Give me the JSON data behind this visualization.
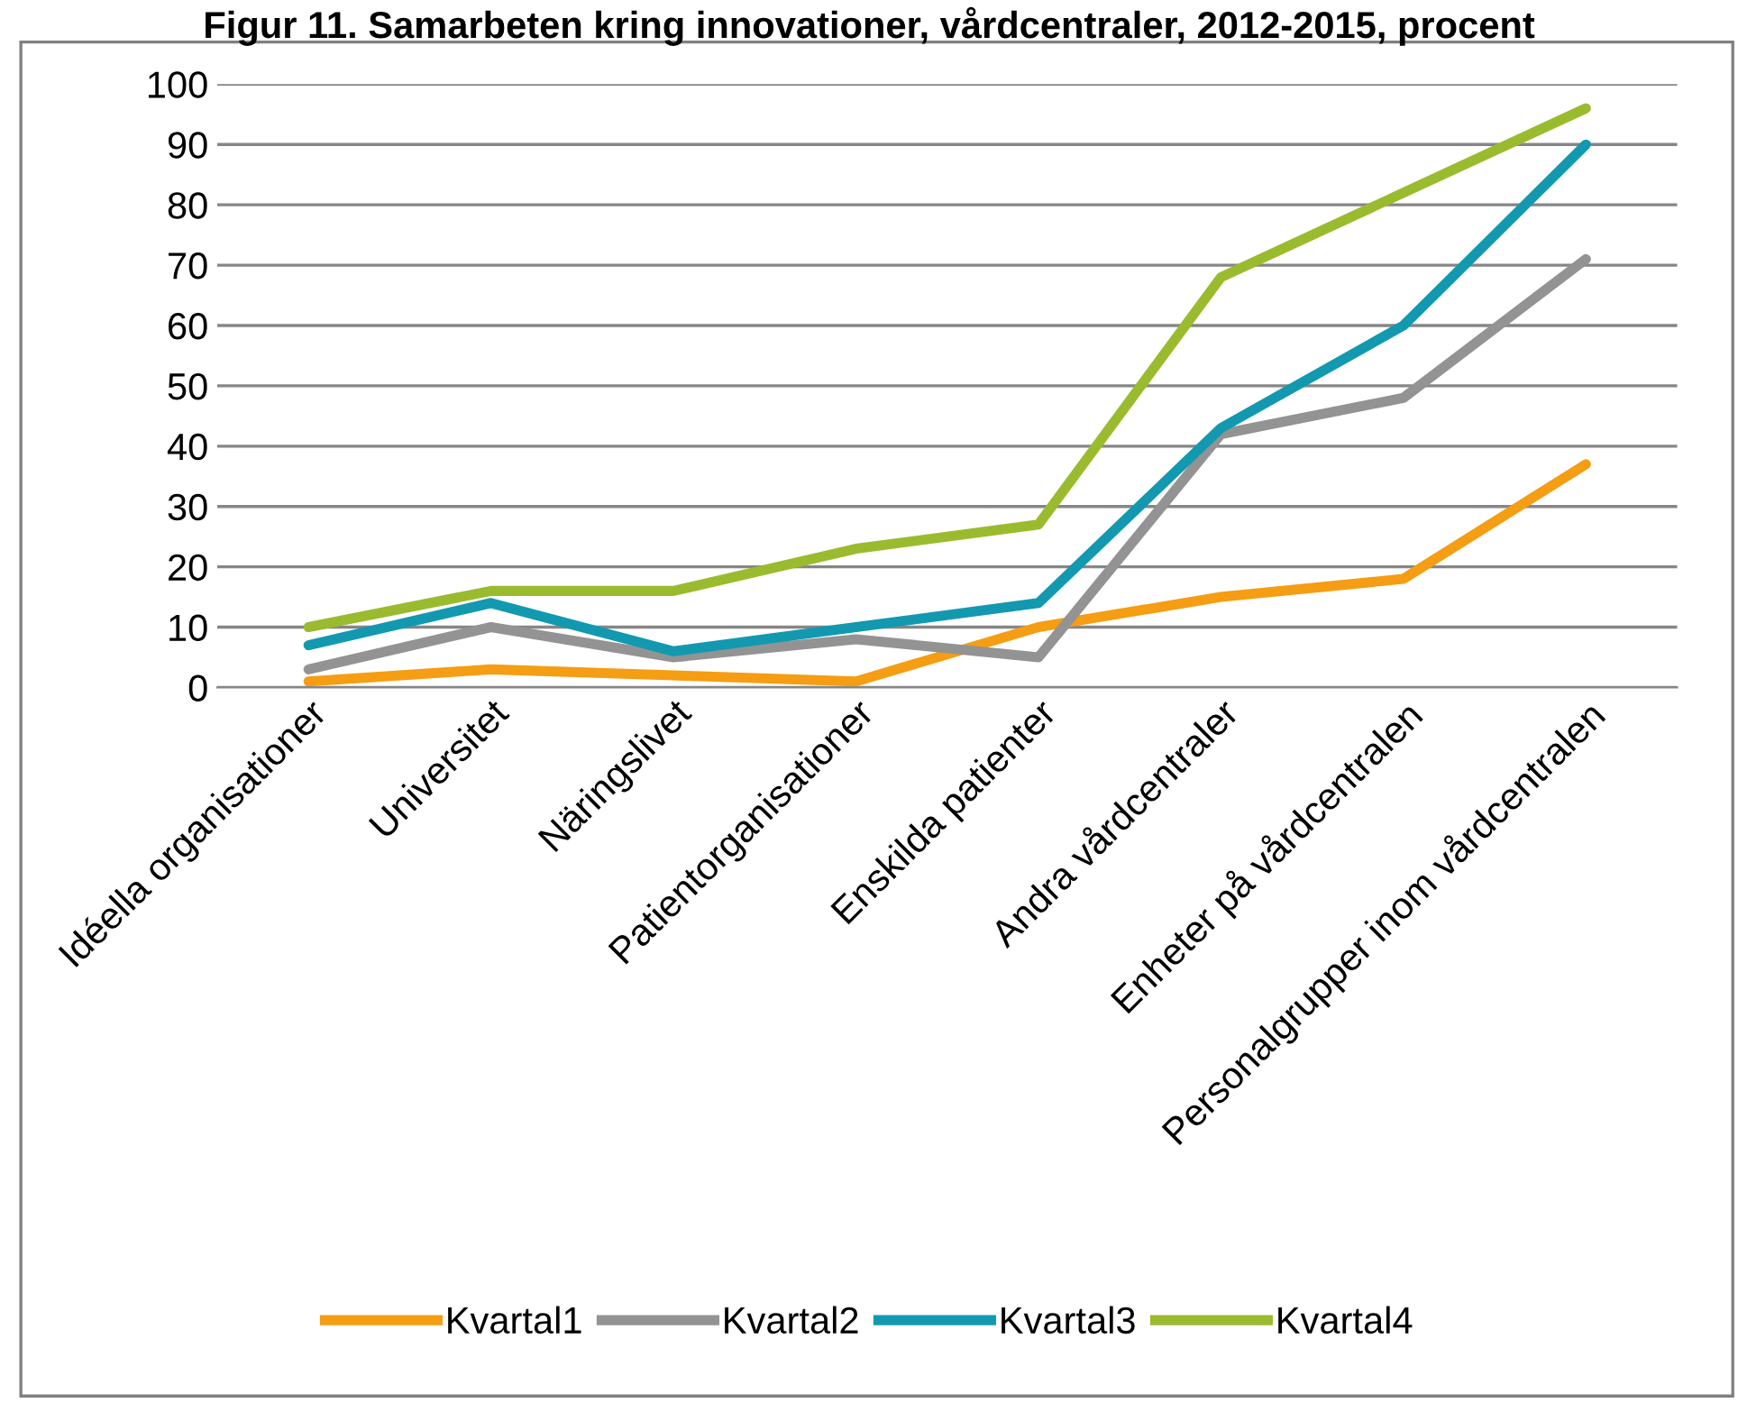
{
  "chart_data": {
    "type": "line",
    "title": "Figur 11. Samarbeten kring innovationer, vårdcentraler, 2012-2015, procent",
    "categories": [
      "Idéella organisationer",
      "Universitet",
      "Näringslivet",
      "Patientorganisationer",
      "Enskilda patienter",
      "Andra vårdcentraler",
      "Enheter på vårdcentralen",
      "Personalgrupper inom vårdcentralen"
    ],
    "series": [
      {
        "name": "Kvartal1",
        "color": "#f59d13",
        "values": [
          1,
          3,
          2,
          1,
          10,
          15,
          18,
          37
        ]
      },
      {
        "name": "Kvartal2",
        "color": "#939393",
        "values": [
          3,
          10,
          5,
          8,
          5,
          42,
          48,
          71
        ]
      },
      {
        "name": "Kvartal3",
        "color": "#1299b0",
        "values": [
          7,
          14,
          6,
          10,
          14,
          43,
          60,
          90
        ]
      },
      {
        "name": "Kvartal4",
        "color": "#9bbb2f",
        "values": [
          10,
          16,
          16,
          23,
          27,
          68,
          82,
          96
        ]
      }
    ],
    "ylim": [
      0,
      100
    ],
    "yticks": [
      0,
      10,
      20,
      30,
      40,
      50,
      60,
      70,
      80,
      90,
      100
    ],
    "grid": "y",
    "legend": "bottom",
    "marker": "none",
    "line_style": "solid"
  }
}
